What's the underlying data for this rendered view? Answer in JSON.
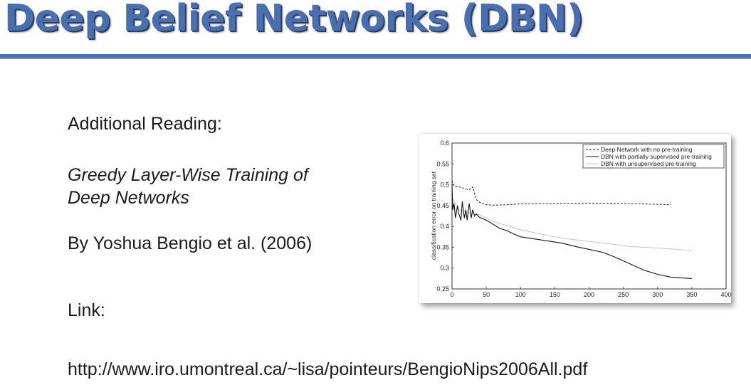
{
  "slide": {
    "title": "Deep Belief Networks (DBN)",
    "accent_color": "#4e70ad",
    "additional_reading_label": "Additional Reading:",
    "paper_title_line1": "Greedy Layer-Wise Training of",
    "paper_title_line2": "Deep Networks",
    "authors": "By Yoshua Bengio et al. (2006)",
    "link_label": "Link:",
    "link_url": "http://www.iro.umontreal.ca/~lisa/pointeurs/BengioNips2006All.pdf"
  },
  "chart_data": {
    "type": "line",
    "ylabel": "classification error on training set",
    "xlabel": "",
    "xlim": [
      0,
      400
    ],
    "ylim": [
      0.25,
      0.6
    ],
    "x_ticks": [
      "0",
      "50",
      "100",
      "150",
      "200",
      "250",
      "300",
      "350",
      "400"
    ],
    "y_ticks": [
      "0.25",
      "0.3",
      "0.35",
      "0.4",
      "0.45",
      "0.5",
      "0.55",
      "0.6"
    ],
    "legend_position": "top-right",
    "series": [
      {
        "name": "Deep Network with no pre-training",
        "style": "dashed",
        "color": "#222222",
        "x": [
          0,
          2,
          5,
          10,
          15,
          20,
          25,
          30,
          32,
          35,
          40,
          50,
          60,
          80,
          100,
          150,
          200,
          250,
          300,
          320
        ],
        "y": [
          0.51,
          0.5,
          0.495,
          0.495,
          0.493,
          0.49,
          0.488,
          0.495,
          0.485,
          0.465,
          0.458,
          0.452,
          0.451,
          0.452,
          0.454,
          0.455,
          0.456,
          0.455,
          0.453,
          0.452
        ]
      },
      {
        "name": "DBN with partially supervised pre-training",
        "style": "solid",
        "color": "#111111",
        "x": [
          0,
          1,
          3,
          5,
          8,
          10,
          13,
          15,
          18,
          20,
          22,
          25,
          28,
          30,
          33,
          35,
          40,
          50,
          60,
          70,
          80,
          90,
          100,
          120,
          140,
          160,
          180,
          200,
          220,
          240,
          260,
          280,
          300,
          320,
          340,
          350
        ],
        "y": [
          0.5,
          0.44,
          0.455,
          0.42,
          0.45,
          0.43,
          0.415,
          0.46,
          0.42,
          0.44,
          0.415,
          0.455,
          0.42,
          0.44,
          0.425,
          0.43,
          0.422,
          0.415,
          0.405,
          0.395,
          0.39,
          0.382,
          0.375,
          0.37,
          0.365,
          0.36,
          0.352,
          0.345,
          0.338,
          0.325,
          0.31,
          0.295,
          0.285,
          0.278,
          0.276,
          0.275
        ]
      },
      {
        "name": "DBN with unsupervised pre-training",
        "style": "solid",
        "color": "#c8c8c8",
        "x": [
          0,
          10,
          20,
          30,
          40,
          50,
          60,
          80,
          100,
          120,
          140,
          160,
          180,
          200,
          220,
          240,
          260,
          280,
          300,
          320,
          340,
          350
        ],
        "y": [
          0.47,
          0.44,
          0.435,
          0.43,
          0.428,
          0.42,
          0.412,
          0.402,
          0.392,
          0.385,
          0.378,
          0.372,
          0.368,
          0.364,
          0.36,
          0.356,
          0.352,
          0.35,
          0.348,
          0.346,
          0.343,
          0.342
        ]
      }
    ]
  }
}
